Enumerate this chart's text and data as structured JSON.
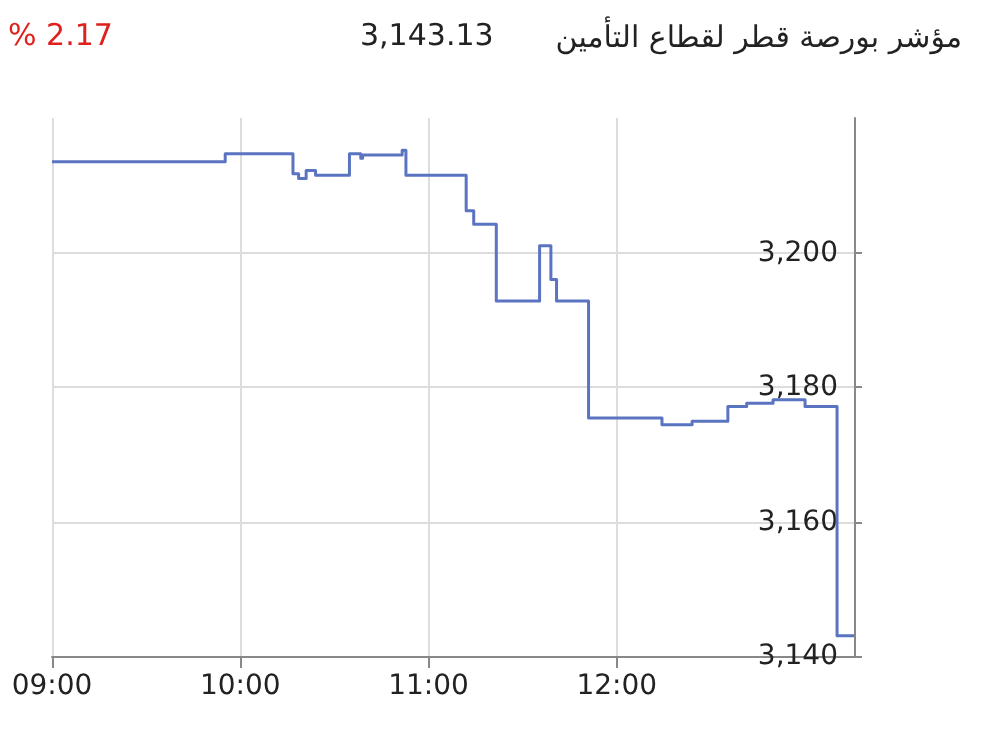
{
  "chart_data": {
    "type": "step",
    "title": "مؤشر بورصة قطر لقطاع التأمين",
    "annotations": [
      "3,143.13",
      "% 2.17"
    ],
    "x": [
      9.0,
      9.92,
      10.28,
      10.31,
      10.35,
      10.4,
      10.58,
      10.64,
      10.65,
      10.86,
      10.88,
      11.2,
      11.24,
      11.36,
      11.59,
      11.65,
      11.68,
      11.85,
      12.24,
      12.4,
      12.59,
      12.69,
      12.83,
      13.0,
      13.17,
      13.26
    ],
    "series": [
      {
        "color": "#5b74c2",
        "values": [
          3213.5,
          3214.7,
          3211.7,
          3211,
          3212.2,
          3211.5,
          3214.7,
          3214,
          3214.5,
          3215.2,
          3211.5,
          3206.2,
          3204.2,
          3192.8,
          3201,
          3196,
          3192.8,
          3175.4,
          3174.4,
          3174.9,
          3177.1,
          3177.6,
          3178.1,
          3177.1,
          3143,
          3143
        ]
      }
    ],
    "xlim": [
      9,
      13.26
    ],
    "xticks": [
      {
        "value": 9,
        "label": "09:00"
      },
      {
        "value": 10,
        "label": "10:00"
      },
      {
        "value": 11,
        "label": "11:00"
      },
      {
        "value": 12,
        "label": "12:00"
      }
    ],
    "ylim": [
      3140,
      3220
    ],
    "yticks": [
      {
        "value": 3140,
        "label": "3,140"
      },
      {
        "value": 3160,
        "label": "3,160"
      },
      {
        "value": 3180,
        "label": "3,180"
      },
      {
        "value": 3200,
        "label": "3,200"
      }
    ],
    "grid": true,
    "line_style": "solid"
  }
}
